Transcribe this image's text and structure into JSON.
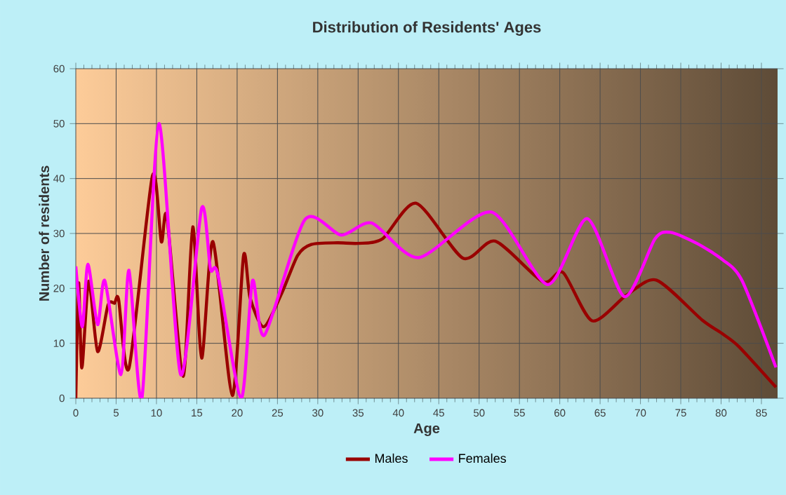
{
  "chart_data": {
    "type": "line",
    "title": "Distribution of Residents' Ages",
    "xlabel": "Age",
    "ylabel": "Number of residents",
    "xlim": [
      0,
      87
    ],
    "ylim": [
      0,
      60
    ],
    "xticks": [
      0,
      5,
      10,
      15,
      20,
      25,
      30,
      35,
      40,
      45,
      50,
      55,
      60,
      65,
      70,
      75,
      80,
      85
    ],
    "yticks": [
      0,
      10,
      20,
      30,
      40,
      50,
      60
    ],
    "grid": true,
    "legend": "bottom",
    "series": [
      {
        "name": "Males",
        "color": "#990000",
        "x": [
          0,
          0.35,
          0.75,
          1.6,
          2.7,
          4,
          4.8,
          5.3,
          6.6,
          9.5,
          10.6,
          11.3,
          13.3,
          14.5,
          15.6,
          17,
          19.4,
          20.8,
          21.6,
          23.3,
          25.5,
          27.5,
          29.2,
          32.4,
          35,
          38,
          42.2,
          48,
          52,
          57.9,
          60.4,
          64,
          68.3,
          72,
          77.6,
          80.2,
          82.2,
          86.8
        ],
        "values": [
          0,
          21,
          5.5,
          21.3,
          8.5,
          17,
          17.3,
          18,
          5.5,
          40.5,
          28.5,
          33,
          4,
          31.2,
          7.3,
          28.5,
          0.5,
          26,
          18.3,
          13,
          19,
          26,
          28,
          28.3,
          28.2,
          29,
          35.5,
          25.5,
          28.6,
          21.2,
          22.9,
          14.1,
          18.8,
          21.5,
          14.3,
          11.7,
          9.4,
          2
        ]
      },
      {
        "name": "Females",
        "color": "#ff00ff",
        "x": [
          0,
          0.8,
          1.5,
          2.7,
          3.6,
          5.6,
          6.6,
          8.2,
          10.3,
          13,
          15.6,
          16.7,
          17.6,
          20.5,
          21.9,
          23.4,
          28.4,
          32.9,
          36.7,
          42.5,
          51.5,
          58.5,
          63.4,
          68,
          71.8,
          73.7,
          77,
          80.2,
          82.6,
          86.8
        ],
        "values": [
          24,
          13,
          24.4,
          13.4,
          21.4,
          4.3,
          23.3,
          0,
          50,
          4.3,
          34.6,
          23.5,
          22.6,
          0,
          21.4,
          11.5,
          32.5,
          29.7,
          31.9,
          25.6,
          33.9,
          20.7,
          32.7,
          18.5,
          29,
          30.2,
          28.2,
          25.2,
          21.4,
          5.6
        ]
      }
    ]
  }
}
